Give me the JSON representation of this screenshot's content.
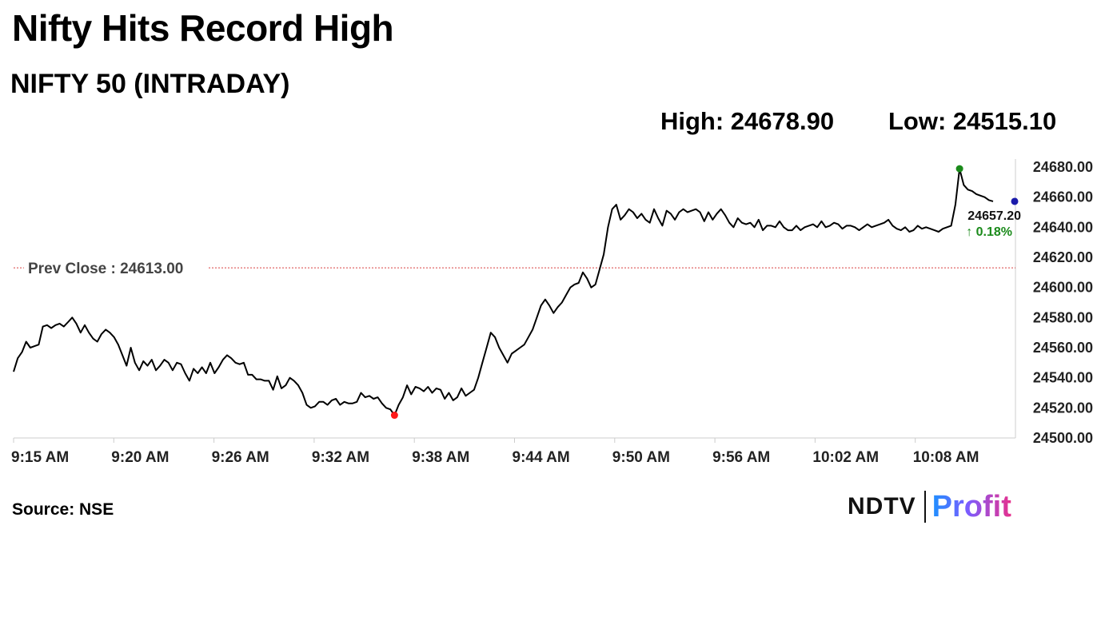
{
  "headline": "Nifty Hits Record High",
  "subtitle": "NIFTY 50 (INTRADAY)",
  "stats": {
    "high": "High: 24678.90",
    "low": "Low: 24515.10"
  },
  "source": "Source: NSE",
  "brand": {
    "left": "NDTV",
    "right": "Profit"
  },
  "colors": {
    "line": "#000000",
    "high_marker": "#1a8a1a",
    "low_marker": "#ff1a1a",
    "last_marker": "#1a1aaa",
    "ref_line": "#d94040",
    "up": "#1a8a1a"
  },
  "chart_data": {
    "type": "line",
    "ylim": [
      24500,
      24680
    ],
    "y_ticks": [
      "24680.00",
      "24660.00",
      "24640.00",
      "24620.00",
      "24600.00",
      "24580.00",
      "24560.00",
      "24540.00",
      "24520.00",
      "24500.00"
    ],
    "x_ticks": [
      "9:15 AM",
      "9:20 AM",
      "9:26 AM",
      "9:32 AM",
      "9:38 AM",
      "9:44 AM",
      "9:50 AM",
      "9:56 AM",
      "10:02 AM",
      "10:08 AM"
    ],
    "reference_line": {
      "label": "Prev Close : 24613.00",
      "value": 24613.0
    },
    "last_label": "24657.20",
    "change_label": "↑ 0.18%",
    "key_points": [
      {
        "time": "9:15",
        "value": 24544
      },
      {
        "time": "9:18",
        "value": 24576
      },
      {
        "time": "9:21",
        "value": 24553
      },
      {
        "time": "9:24",
        "value": 24546
      },
      {
        "time": "9:27",
        "value": 24549
      },
      {
        "time": "9:30",
        "value": 24523
      },
      {
        "time": "9:33",
        "value": 24526
      },
      {
        "time": "9:35",
        "value": 24515.1
      },
      {
        "time": "9:37",
        "value": 24534
      },
      {
        "time": "9:40",
        "value": 24527
      },
      {
        "time": "9:42",
        "value": 24565
      },
      {
        "time": "9:44",
        "value": 24588
      },
      {
        "time": "9:46",
        "value": 24610
      },
      {
        "time": "9:48",
        "value": 24650
      },
      {
        "time": "9:50",
        "value": 24644
      },
      {
        "time": "9:53",
        "value": 24652
      },
      {
        "time": "9:56",
        "value": 24640
      },
      {
        "time": "9:59",
        "value": 24641
      },
      {
        "time": "10:02",
        "value": 24641
      },
      {
        "time": "10:05",
        "value": 24638
      },
      {
        "time": "10:08",
        "value": 24640
      },
      {
        "time": "10:09",
        "value": 24678.9
      },
      {
        "time": "10:10",
        "value": 24665
      },
      {
        "time": "10:11",
        "value": 24660
      },
      {
        "time": "10:12",
        "value": 24657.2
      }
    ],
    "series": [
      {
        "values": [
          24544,
          24553,
          24557,
          24564,
          24560,
          24561,
          24562,
          24574,
          24575,
          24573,
          24575,
          24576,
          24574,
          24577,
          24580,
          24576,
          24570,
          24575,
          24570,
          24566,
          24564,
          24569,
          24572,
          24570,
          24567,
          24562,
          24555,
          24548,
          24560,
          24550,
          24545,
          24551,
          24548,
          24552,
          24545,
          24548,
          24552,
          24550,
          24545,
          24550,
          24549,
          24543,
          24538,
          24546,
          24543,
          24547,
          24543,
          24550,
          24543,
          24547,
          24552,
          24555,
          24553,
          24550,
          24549,
          24550,
          24542,
          24542,
          24539,
          24539,
          24538,
          24538,
          24532,
          24541,
          24533,
          24535,
          24540,
          24538,
          24535,
          24530,
          24522,
          24520,
          24521,
          24524,
          24524,
          24522,
          24525,
          24526,
          24522,
          24524,
          24523,
          24523,
          24524,
          24530,
          24527,
          24528,
          24526,
          24527,
          24523,
          24520,
          24519,
          24515.1,
          24522,
          24527,
          24535,
          24529,
          24534,
          24533,
          24531,
          24534,
          24530,
          24533,
          24532,
          24526,
          24530,
          24525,
          24527,
          24533,
          24528,
          24530,
          24532,
          24540,
          24550,
          24560,
          24570,
          24567,
          24560,
          24555,
          24550,
          24556,
          24558,
          24560,
          24562,
          24567,
          24572,
          24580,
          24588,
          24592,
          24588,
          24583,
          24587,
          24590,
          24595,
          24600,
          24602,
          24603,
          24610,
          24606,
          24600,
          24602,
          24612,
          24622,
          24640,
          24652,
          24655,
          24645,
          24648,
          24652,
          24650,
          24646,
          24649,
          24645,
          24643,
          24652,
          24646,
          24641,
          24651,
          24649,
          24645,
          24650,
          24652,
          24650,
          24651,
          24652,
          24650,
          24644,
          24650,
          24645,
          24649,
          24652,
          24648,
          24643,
          24640,
          24646,
          24643,
          24642,
          24643,
          24640,
          24645,
          24638,
          24641,
          24641,
          24640,
          24644,
          24640,
          24638,
          24638,
          24641,
          24638,
          24640,
          24641,
          24642,
          24640,
          24644,
          24640,
          24641,
          24643,
          24642,
          24639,
          24641,
          24641,
          24640,
          24638,
          24640,
          24642,
          24640,
          24641,
          24642,
          24643,
          24645,
          24641,
          24639,
          24638,
          24640,
          24637,
          24638,
          24641,
          24639,
          24640,
          24639,
          24638,
          24637,
          24639,
          24640,
          24641,
          24655,
          24678.9,
          24668,
          24665,
          24664,
          24662,
          24661,
          24660,
          24658,
          24657.2
        ]
      }
    ]
  }
}
